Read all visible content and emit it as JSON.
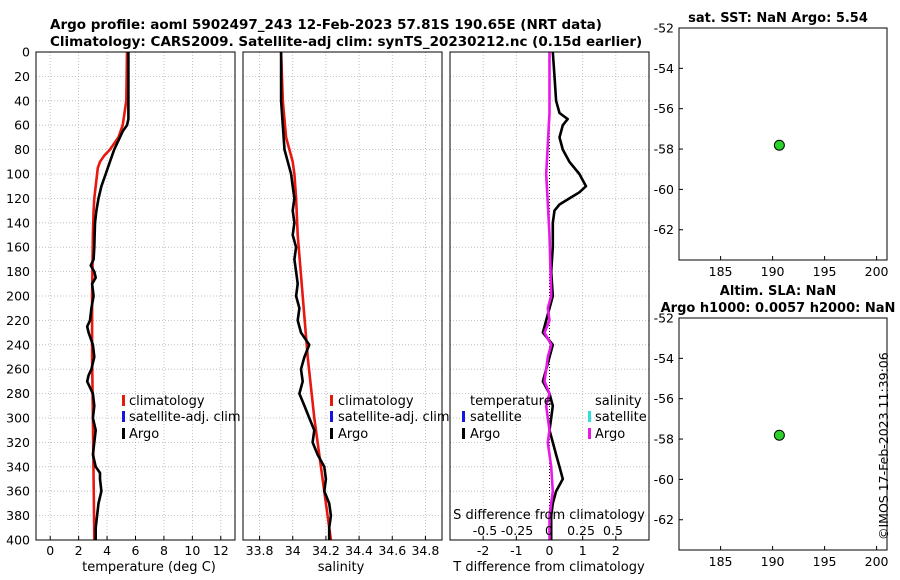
{
  "header": {
    "line1": "Argo profile: aoml 5902497_243 12-Feb-2023 57.81S 190.65E (NRT data)",
    "line2": "Climatology: CARS2009. Satellite-adj clim: synTS_20230212.nc (0.15d earlier)"
  },
  "footer": {
    "stamp": "©IMOS 17-Feb-2023 11:39:06"
  },
  "colors": {
    "climatology": "#e8170f",
    "satellite": "#1414e6",
    "argo": "#000000",
    "s_satellite": "#33dddd",
    "s_argo": "#e619e6",
    "marker": "#2bd12b",
    "grid": "#b4b4b4"
  },
  "chart_data": [
    {
      "id": "temperature",
      "type": "line",
      "xlabel": "temperature (deg C)",
      "x_range": [
        -1,
        13
      ],
      "x_ticks": [
        0,
        2,
        4,
        6,
        8,
        10,
        12
      ],
      "y_range": [
        0,
        400
      ],
      "y_ticks": [
        0,
        20,
        40,
        60,
        80,
        100,
        120,
        140,
        160,
        180,
        200,
        220,
        240,
        260,
        280,
        300,
        320,
        340,
        360,
        380,
        400
      ],
      "y_reversed": true,
      "grid": true,
      "legend": [
        "climatology",
        "satellite-adj. clim",
        "Argo"
      ],
      "series": [
        {
          "name": "climatology",
          "color": "red",
          "depth": [
            0,
            40,
            60,
            70,
            80,
            85,
            90,
            95,
            100,
            110,
            120,
            130,
            150,
            200,
            250,
            300,
            350,
            400
          ],
          "values": [
            5.4,
            5.35,
            5.1,
            4.8,
            4.2,
            3.8,
            3.5,
            3.35,
            3.3,
            3.2,
            3.1,
            3.05,
            3.0,
            2.95,
            2.95,
            3.0,
            3.05,
            3.1
          ]
        },
        {
          "name": "Argo",
          "color": "black",
          "depth": [
            0,
            30,
            55,
            60,
            65,
            70,
            80,
            90,
            100,
            110,
            120,
            130,
            140,
            160,
            170,
            175,
            180,
            185,
            190,
            200,
            210,
            220,
            225,
            230,
            240,
            250,
            260,
            265,
            270,
            275,
            280,
            290,
            300,
            310,
            320,
            330,
            340,
            345,
            350,
            360,
            370,
            380,
            390,
            400
          ],
          "values": [
            5.5,
            5.5,
            5.5,
            5.4,
            5.1,
            4.9,
            4.5,
            4.2,
            3.9,
            3.6,
            3.4,
            3.25,
            3.15,
            3.1,
            3.05,
            2.85,
            3.1,
            3.2,
            2.95,
            3.05,
            2.9,
            2.8,
            2.6,
            2.7,
            3.0,
            3.1,
            2.9,
            2.7,
            2.6,
            2.8,
            3.0,
            3.1,
            3.0,
            3.2,
            3.1,
            3.0,
            3.2,
            3.5,
            3.5,
            3.6,
            3.4,
            3.3,
            3.2,
            3.2
          ]
        }
      ]
    },
    {
      "id": "salinity",
      "type": "line",
      "xlabel": "salinity",
      "x_range": [
        33.7,
        34.9
      ],
      "x_ticks": [
        33.8,
        34,
        34.2,
        34.4,
        34.6,
        34.8
      ],
      "y_range": [
        0,
        400
      ],
      "y_reversed": true,
      "grid": true,
      "legend": [
        "climatology",
        "satellite-adj. clim",
        "Argo"
      ],
      "series": [
        {
          "name": "climatology",
          "color": "red",
          "depth": [
            0,
            40,
            70,
            90,
            100,
            120,
            150,
            200,
            250,
            300,
            350,
            400
          ],
          "values": [
            33.93,
            33.94,
            33.96,
            34.0,
            34.01,
            34.02,
            34.03,
            34.06,
            34.09,
            34.13,
            34.18,
            34.23
          ]
        },
        {
          "name": "Argo",
          "color": "black",
          "depth": [
            0,
            40,
            60,
            80,
            90,
            100,
            110,
            120,
            130,
            140,
            150,
            160,
            170,
            180,
            190,
            200,
            210,
            220,
            230,
            240,
            250,
            260,
            270,
            280,
            290,
            300,
            310,
            320,
            330,
            340,
            350,
            360,
            370,
            380,
            390,
            400
          ],
          "values": [
            33.93,
            33.93,
            33.94,
            33.95,
            33.97,
            33.99,
            34.0,
            34.01,
            34.0,
            34.01,
            34.0,
            34.02,
            34.01,
            34.02,
            34.03,
            34.02,
            34.04,
            34.03,
            34.05,
            34.1,
            34.07,
            34.05,
            34.06,
            34.04,
            34.07,
            34.1,
            34.13,
            34.12,
            34.15,
            34.19,
            34.2,
            34.19,
            34.22,
            34.23,
            34.22,
            34.22
          ]
        }
      ]
    },
    {
      "id": "difference",
      "type": "line",
      "xlabel": "T difference from climatology",
      "x_range": [
        -3,
        3
      ],
      "x_ticks": [
        -2,
        -1,
        0,
        1,
        2
      ],
      "top_axis_label": "S difference from climatology",
      "top_ticks": [
        "-0.5",
        "-0.25",
        "0",
        "0.25",
        "0.5"
      ],
      "y_range": [
        0,
        400
      ],
      "y_reversed": true,
      "grid": true,
      "legend_temperature_title": "temperature",
      "legend_temperature": [
        "satellite",
        "Argo"
      ],
      "legend_salinity_title": "salinity",
      "legend_salinity": [
        "satellite",
        "Argo"
      ],
      "series": [
        {
          "name": "T Argo",
          "color": "black",
          "depth": [
            0,
            20,
            40,
            50,
            55,
            60,
            70,
            80,
            90,
            100,
            110,
            115,
            120,
            125,
            130,
            140,
            160,
            180,
            200,
            220,
            230,
            240,
            250,
            260,
            270,
            280,
            290,
            300,
            310,
            320,
            330,
            340,
            350,
            360,
            370,
            380,
            390,
            400
          ],
          "values": [
            0.1,
            0.15,
            0.2,
            0.3,
            0.55,
            0.4,
            0.3,
            0.4,
            0.6,
            0.9,
            1.1,
            0.9,
            0.6,
            0.3,
            0.15,
            0.1,
            0.1,
            0.05,
            0.1,
            -0.1,
            -0.2,
            0.1,
            0.0,
            -0.1,
            -0.2,
            0.0,
            0.1,
            0.05,
            0.0,
            0.1,
            0.2,
            0.3,
            0.4,
            0.2,
            0.1,
            0.05,
            0.05,
            0.05
          ]
        },
        {
          "name": "S Argo",
          "color": "magenta",
          "depth": [
            0,
            50,
            100,
            150,
            200,
            210,
            220,
            230,
            240,
            250,
            260,
            270,
            280,
            290,
            300,
            310,
            320,
            330,
            340,
            360,
            380,
            400
          ],
          "values": [
            0.0,
            0.0,
            -0.1,
            0.0,
            0.05,
            -0.05,
            0.0,
            -0.15,
            0.05,
            -0.05,
            -0.1,
            -0.15,
            0.0,
            -0.1,
            -0.05,
            0.0,
            -0.05,
            0.0,
            0.05,
            0.1,
            0.0,
            0.0
          ]
        }
      ]
    },
    {
      "id": "sst-map",
      "type": "scatter",
      "title": "sat. SST: NaN Argo: 5.54",
      "x_range": [
        181,
        201
      ],
      "x_ticks": [
        185,
        190,
        195,
        200
      ],
      "y_range": [
        -63.5,
        -52
      ],
      "y_ticks": [
        -52,
        -54,
        -56,
        -58,
        -60,
        -62
      ],
      "points": [
        {
          "lon": 190.65,
          "lat": -57.81
        }
      ]
    },
    {
      "id": "sla-map",
      "type": "scatter",
      "title": "Altim. SLA: NaN",
      "subtitle": "Argo h1000: 0.0057 h2000: NaN",
      "x_range": [
        181,
        201
      ],
      "x_ticks": [
        185,
        190,
        195,
        200
      ],
      "y_range": [
        -63.5,
        -52
      ],
      "y_ticks": [
        -52,
        -54,
        -56,
        -58,
        -60,
        -62
      ],
      "points": [
        {
          "lon": 190.65,
          "lat": -57.81
        }
      ]
    }
  ]
}
